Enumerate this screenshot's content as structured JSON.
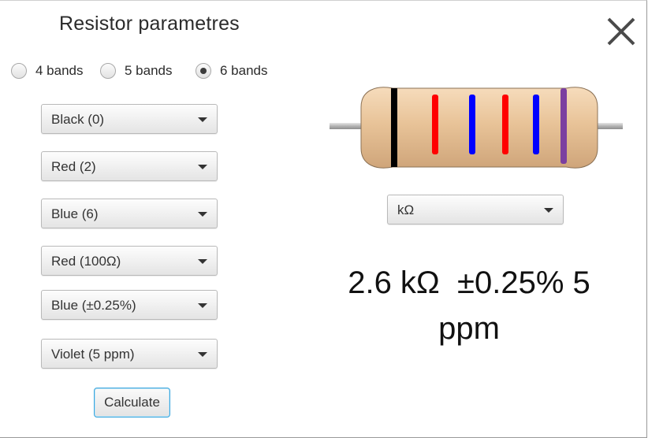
{
  "dialog": {
    "title": "Resistor parametres",
    "close_icon": "close-icon"
  },
  "band_options": [
    {
      "label": "4 bands",
      "checked": false
    },
    {
      "label": "5 bands",
      "checked": false
    },
    {
      "label": "6 bands",
      "checked": true
    }
  ],
  "bands": [
    {
      "label": "Black (0)",
      "color": "#000000"
    },
    {
      "label": "Red (2)",
      "color": "#ff0000"
    },
    {
      "label": "Blue (6)",
      "color": "#0000ff"
    },
    {
      "label": "Red (100Ω)",
      "color": "#ff0000"
    },
    {
      "label": "Blue (±0.25%)",
      "color": "#0000ff"
    },
    {
      "label": "Violet (5 ppm)",
      "color": "#7b3fa0"
    }
  ],
  "unit_select": {
    "value": "kΩ"
  },
  "calculate_button": {
    "label": "Calculate"
  },
  "result": {
    "line1": "2.6 kΩ  ±0.25% 5",
    "line2": "ppm"
  },
  "colors": {
    "body": "#e9c49a",
    "lead": "#bcbcbc",
    "accent": "#39a6dd"
  }
}
